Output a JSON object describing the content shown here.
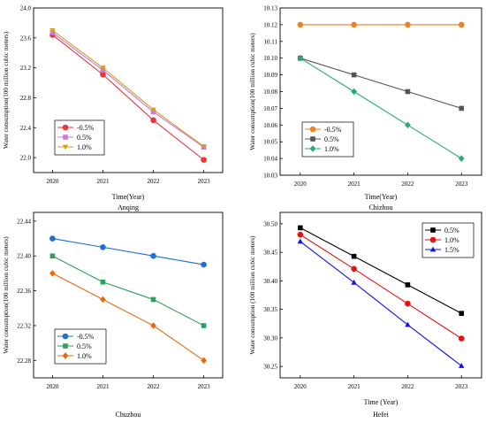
{
  "chart_data": [
    {
      "type": "line",
      "caption": "Anqing",
      "xlabel": "Time(Year)",
      "ylabel": "Water consumption(100 million cubic meters)",
      "categories": [
        "2020",
        "2021",
        "2022",
        "2023"
      ],
      "ylim": [
        21.8,
        24.0
      ],
      "yticks": [
        22.0,
        22.4,
        22.8,
        23.2,
        23.6,
        24.0
      ],
      "ytick_labels": [
        "22.0",
        "22.4",
        "22.8",
        "23.2",
        "23.6",
        "24.0"
      ],
      "legend_position": "bottom-left",
      "series": [
        {
          "name": "-0.5%",
          "color": "#e8343a",
          "marker": "circle",
          "values": [
            23.64,
            23.11,
            22.5,
            21.97
          ]
        },
        {
          "name": "0.5%",
          "color": "#c878e6",
          "marker": "square",
          "values": [
            23.67,
            23.17,
            22.61,
            22.14
          ]
        },
        {
          "name": "1.0%",
          "color": "#d4a017",
          "marker": "triangle-down",
          "values": [
            23.7,
            23.2,
            22.64,
            22.15
          ]
        }
      ]
    },
    {
      "type": "line",
      "caption": "Chizhou",
      "xlabel": "Time(Year)",
      "ylabel": "Water consumption(100 million cubic meters)",
      "categories": [
        "2020",
        "2021",
        "2022",
        "2023"
      ],
      "ylim": [
        10.03,
        10.13
      ],
      "yticks": [
        10.03,
        10.04,
        10.05,
        10.06,
        10.07,
        10.08,
        10.09,
        10.1,
        10.11,
        10.12,
        10.13
      ],
      "ytick_labels": [
        "10.03",
        "10.04",
        "10.05",
        "10.06",
        "10.07",
        "10.08",
        "10.09",
        "10.10",
        "10.11",
        "10.12",
        "10.13"
      ],
      "legend_position": "bottom-left",
      "series": [
        {
          "name": "-0.5%",
          "color": "#f07f1e",
          "marker": "circle",
          "values": [
            10.12,
            10.12,
            10.12,
            10.12
          ]
        },
        {
          "name": "0.5%",
          "color": "#555555",
          "marker": "square",
          "values": [
            10.1,
            10.09,
            10.08,
            10.07
          ]
        },
        {
          "name": "1.0%",
          "color": "#2aa876",
          "marker": "diamond",
          "values": [
            10.1,
            10.08,
            10.06,
            10.04
          ]
        }
      ]
    },
    {
      "type": "line",
      "caption": "Chuzhou",
      "xlabel": "",
      "ylabel": "Water consumption(100 million cubic meters)",
      "categories": [
        "2020",
        "2021",
        "2022",
        "2023"
      ],
      "ylim": [
        22.26,
        22.45
      ],
      "yticks": [
        22.28,
        22.32,
        22.36,
        22.4,
        22.44
      ],
      "ytick_labels": [
        "22.28",
        "22.32",
        "22.36",
        "22.40",
        "22.44"
      ],
      "legend_position": "bottom-left",
      "series": [
        {
          "name": "-0.5%",
          "color": "#1f6fd1",
          "marker": "circle",
          "values": [
            22.42,
            22.41,
            22.4,
            22.39
          ]
        },
        {
          "name": "0.5%",
          "color": "#2ea05a",
          "marker": "square",
          "values": [
            22.4,
            22.37,
            22.35,
            22.32
          ]
        },
        {
          "name": "1.0%",
          "color": "#e86a10",
          "marker": "diamond",
          "values": [
            22.38,
            22.35,
            22.32,
            22.28
          ]
        }
      ]
    },
    {
      "type": "line",
      "caption": "Hefei",
      "xlabel": "Time (Year)",
      "ylabel": "Water consumption (100 million cubic meters)",
      "categories": [
        "2020",
        "2021",
        "2022",
        "2023"
      ],
      "ylim": [
        30.23,
        30.52
      ],
      "yticks": [
        30.25,
        30.3,
        30.35,
        30.4,
        30.45,
        30.5
      ],
      "ytick_labels": [
        "30.25",
        "30.30",
        "30.35",
        "30.40",
        "30.45",
        "30.50"
      ],
      "legend_position": "top-right",
      "series": [
        {
          "name": "0.5%",
          "color": "#000000",
          "marker": "square",
          "values": [
            30.493,
            30.443,
            30.393,
            30.343
          ]
        },
        {
          "name": "1.0%",
          "color": "#e81010",
          "marker": "circle",
          "values": [
            30.481,
            30.421,
            30.36,
            30.299
          ]
        },
        {
          "name": "1.5%",
          "color": "#1010e8",
          "marker": "triangle-up",
          "values": [
            30.469,
            30.397,
            30.323,
            30.251
          ]
        }
      ]
    }
  ]
}
